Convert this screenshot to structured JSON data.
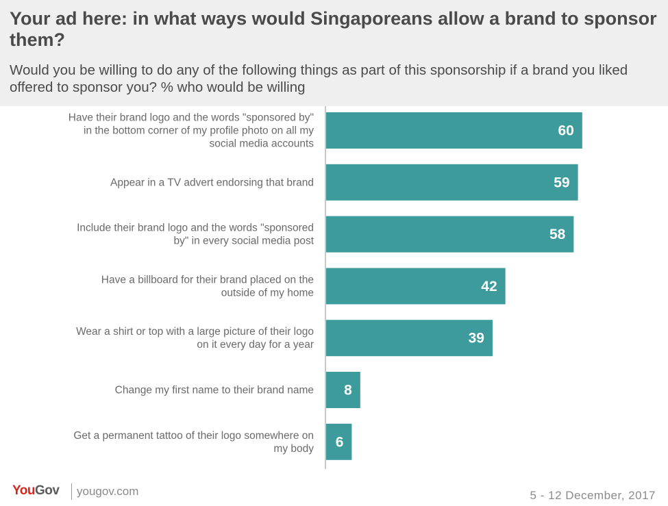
{
  "header": {
    "title": "Your ad here: in what ways would Singaporeans allow a brand to sponsor them?",
    "subtitle": "Would you be willing to do any of the following things as part of this sponsorship if a brand you liked offered to sponsor you? % who would be willing"
  },
  "footer": {
    "logo_you": "You",
    "logo_gov": "Gov",
    "url": "yougov.com",
    "date": "5 - 12 December, 2017"
  },
  "colors": {
    "bar": "#3d9b9b",
    "axis": "#c8c8c8"
  },
  "chart_data": {
    "type": "bar",
    "orientation": "horizontal",
    "categories": [
      "Have their brand logo and the words \"sponsored by\" in the bottom corner of my profile photo on all my social media accounts",
      "Appear in a TV advert endorsing that brand",
      "Include their brand logo and the words \"sponsored by\" in every social media post",
      "Have a billboard for their brand placed on the outside of my home",
      "Wear a shirt or top with a large picture of their logo on it every day for a year",
      "Change my first name to their brand name",
      "Get a permanent tattoo of their logo somewhere on my body"
    ],
    "category_lines": [
      [
        "Have their brand logo and the words \"sponsored by\"",
        "in the bottom corner of my profile photo on all my",
        "social media accounts"
      ],
      [
        "Appear in a TV advert endorsing that brand"
      ],
      [
        "Include their brand logo and the words \"sponsored",
        "by\" in every social media post"
      ],
      [
        "Have a billboard for their brand placed on the",
        "outside of my home"
      ],
      [
        "Wear a shirt or top with a large picture of their logo",
        "on it every day for a year"
      ],
      [
        "Change my first name to their brand name"
      ],
      [
        "Get a permanent tattoo of their logo somewhere on",
        "my body"
      ]
    ],
    "values": [
      60,
      59,
      58,
      42,
      39,
      8,
      6
    ],
    "title": "Your ad here: in what ways would Singaporeans allow a brand to sponsor them?",
    "xlabel": "",
    "ylabel": "",
    "xlim": [
      0,
      80
    ],
    "grid": false,
    "legend": "none"
  }
}
